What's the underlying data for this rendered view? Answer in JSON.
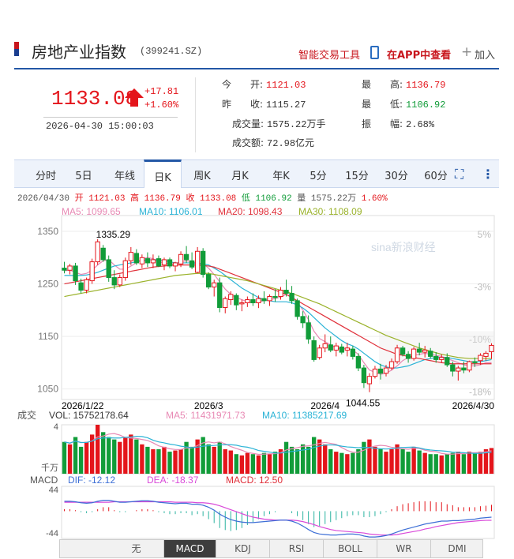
{
  "header": {
    "title": "房地产业指数",
    "code": "(399241.SZ)",
    "tool_link": "智能交易工具",
    "app_link": "在APP中查看",
    "add_label": "加入",
    "add_icon": "plus-icon",
    "phone_icon": "phone-icon"
  },
  "quote": {
    "price": "1133.08",
    "change": "+17.81",
    "change_pct": "+1.60%",
    "datetime": "2026-04-30 15:00:03",
    "open_label": "今　　开:",
    "open": "1121.03",
    "prev_label": "昨　　收:",
    "prev": "1115.27",
    "vol_label": "成交量:",
    "vol": "1575.22万手",
    "amt_label": "成交额:",
    "amt": "72.98亿元",
    "high_label": "最　　高:",
    "high": "1136.79",
    "low_label": "最　　低:",
    "low": "1106.92",
    "amp_label": "振　　幅:",
    "amp": "2.68%"
  },
  "tabs": [
    "分时",
    "5日",
    "年线",
    "日K",
    "周K",
    "月K",
    "年K",
    "5分",
    "15分",
    "30分",
    "60分"
  ],
  "active_tab": "日K",
  "chart_data": {
    "type": "candlestick",
    "info_line": {
      "date": "2026/04/30",
      "open": "开 1121.03",
      "high": "高 1136.79",
      "close": "收 1133.08",
      "low": "低 1106.92",
      "vol": "量 1575.22万",
      "pct": "1.60%"
    },
    "ma_legend": [
      {
        "name": "MA5:",
        "value": "1099.65",
        "color": "#e889b4"
      },
      {
        "name": "MA10:",
        "value": "1106.01",
        "color": "#2ab3d6"
      },
      {
        "name": "MA20:",
        "value": "1098.43",
        "color": "#e0303a"
      },
      {
        "name": "MA30:",
        "value": "1108.09",
        "color": "#9ab22a"
      }
    ],
    "yticks_left": [
      "1350",
      "1250",
      "1150",
      "1050"
    ],
    "yticks_right": [
      "5%",
      "-3%",
      "-10%",
      "-18%"
    ],
    "xticks": [
      "2026/1/22",
      "2026/3",
      "2026/4",
      "2026/4/30"
    ],
    "annotations": {
      "max": "1335.29",
      "min": "1044.55"
    },
    "watermark": "sina新浪财经",
    "ylim": [
      1030,
      1365
    ],
    "candles": [
      [
        1280,
        1292,
        1270,
        1276
      ],
      [
        1276,
        1288,
        1268,
        1284
      ],
      [
        1284,
        1290,
        1248,
        1256
      ],
      [
        1252,
        1260,
        1232,
        1238
      ],
      [
        1238,
        1262,
        1232,
        1258
      ],
      [
        1256,
        1298,
        1250,
        1292
      ],
      [
        1292,
        1335,
        1286,
        1330
      ],
      [
        1318,
        1324,
        1292,
        1296
      ],
      [
        1296,
        1304,
        1254,
        1262
      ],
      [
        1262,
        1276,
        1240,
        1248
      ],
      [
        1248,
        1268,
        1244,
        1262
      ],
      [
        1262,
        1300,
        1256,
        1294
      ],
      [
        1294,
        1320,
        1286,
        1310
      ],
      [
        1308,
        1316,
        1286,
        1290
      ],
      [
        1288,
        1306,
        1280,
        1300
      ],
      [
        1298,
        1310,
        1282,
        1290
      ],
      [
        1290,
        1306,
        1280,
        1296
      ],
      [
        1298,
        1304,
        1282,
        1284
      ],
      [
        1286,
        1300,
        1276,
        1296
      ],
      [
        1296,
        1300,
        1280,
        1284
      ],
      [
        1284,
        1292,
        1274,
        1290
      ],
      [
        1288,
        1312,
        1282,
        1306
      ],
      [
        1306,
        1322,
        1290,
        1296
      ],
      [
        1294,
        1310,
        1278,
        1282
      ],
      [
        1272,
        1320,
        1270,
        1312
      ],
      [
        1312,
        1318,
        1262,
        1268
      ],
      [
        1268,
        1272,
        1240,
        1244
      ],
      [
        1244,
        1258,
        1226,
        1252
      ],
      [
        1252,
        1262,
        1196,
        1205
      ],
      [
        1205,
        1226,
        1194,
        1222
      ],
      [
        1220,
        1236,
        1210,
        1230
      ],
      [
        1228,
        1232,
        1200,
        1210
      ],
      [
        1212,
        1220,
        1198,
        1214
      ],
      [
        1214,
        1226,
        1206,
        1220
      ],
      [
        1220,
        1232,
        1208,
        1214
      ],
      [
        1214,
        1228,
        1204,
        1222
      ],
      [
        1222,
        1236,
        1212,
        1218
      ],
      [
        1218,
        1230,
        1208,
        1226
      ],
      [
        1226,
        1240,
        1216,
        1224
      ],
      [
        1226,
        1244,
        1220,
        1238
      ],
      [
        1238,
        1258,
        1226,
        1232
      ],
      [
        1232,
        1246,
        1212,
        1218
      ],
      [
        1218,
        1222,
        1182,
        1188
      ],
      [
        1188,
        1198,
        1166,
        1176
      ],
      [
        1176,
        1190,
        1136,
        1145
      ],
      [
        1142,
        1150,
        1102,
        1106
      ],
      [
        1110,
        1134,
        1106,
        1128
      ],
      [
        1128,
        1154,
        1120,
        1136
      ],
      [
        1134,
        1150,
        1120,
        1124
      ],
      [
        1124,
        1138,
        1112,
        1132
      ],
      [
        1130,
        1136,
        1116,
        1120
      ],
      [
        1124,
        1138,
        1112,
        1128
      ],
      [
        1126,
        1132,
        1106,
        1112
      ],
      [
        1112,
        1118,
        1084,
        1090
      ],
      [
        1090,
        1096,
        1052,
        1062
      ],
      [
        1060,
        1080,
        1044,
        1074
      ],
      [
        1074,
        1094,
        1070,
        1088
      ],
      [
        1088,
        1098,
        1068,
        1080
      ],
      [
        1080,
        1096,
        1074,
        1090
      ],
      [
        1090,
        1108,
        1086,
        1102
      ],
      [
        1102,
        1134,
        1098,
        1128
      ],
      [
        1128,
        1132,
        1112,
        1116
      ],
      [
        1116,
        1122,
        1100,
        1108
      ],
      [
        1108,
        1130,
        1104,
        1126
      ],
      [
        1126,
        1138,
        1114,
        1120
      ],
      [
        1120,
        1132,
        1110,
        1124
      ],
      [
        1122,
        1128,
        1108,
        1112
      ],
      [
        1112,
        1120,
        1100,
        1106
      ],
      [
        1106,
        1116,
        1100,
        1110
      ],
      [
        1110,
        1118,
        1092,
        1096
      ],
      [
        1096,
        1102,
        1074,
        1084
      ],
      [
        1084,
        1094,
        1066,
        1090
      ],
      [
        1090,
        1102,
        1080,
        1086
      ],
      [
        1086,
        1104,
        1082,
        1102
      ],
      [
        1102,
        1110,
        1092,
        1100
      ],
      [
        1104,
        1118,
        1096,
        1114
      ],
      [
        1112,
        1122,
        1104,
        1118
      ],
      [
        1121,
        1137,
        1107,
        1133
      ]
    ],
    "ma_series": {
      "MA5": [
        1275,
        1276,
        1272,
        1268,
        1270,
        1276,
        1286,
        1294,
        1296,
        1286,
        1278,
        1278,
        1284,
        1290,
        1298,
        1300,
        1298,
        1292,
        1290,
        1288,
        1288,
        1292,
        1294,
        1292,
        1290,
        1288,
        1280,
        1268,
        1254,
        1240,
        1230,
        1224,
        1220,
        1216,
        1214,
        1216,
        1218,
        1220,
        1222,
        1225,
        1230,
        1226,
        1216,
        1200,
        1182,
        1160,
        1146,
        1140,
        1134,
        1128,
        1126,
        1128,
        1124,
        1116,
        1100,
        1086,
        1082,
        1078,
        1080,
        1086,
        1094,
        1104,
        1110,
        1114,
        1116,
        1118,
        1116,
        1114,
        1112,
        1108,
        1104,
        1100,
        1096,
        1094,
        1094,
        1096,
        1100,
        1100
      ],
      "MA10": [
        1266,
        1266,
        1266,
        1266,
        1267,
        1269,
        1272,
        1276,
        1280,
        1284,
        1286,
        1288,
        1290,
        1292,
        1294,
        1296,
        1296,
        1296,
        1294,
        1292,
        1290,
        1290,
        1290,
        1290,
        1289,
        1288,
        1286,
        1280,
        1274,
        1266,
        1258,
        1250,
        1242,
        1236,
        1230,
        1224,
        1220,
        1218,
        1216,
        1216,
        1216,
        1214,
        1210,
        1204,
        1196,
        1186,
        1176,
        1166,
        1158,
        1150,
        1142,
        1136,
        1132,
        1126,
        1118,
        1110,
        1102,
        1096,
        1092,
        1090,
        1090,
        1092,
        1094,
        1098,
        1102,
        1106,
        1108,
        1110,
        1110,
        1110,
        1108,
        1106,
        1104,
        1102,
        1102,
        1102,
        1104,
        1106
      ],
      "MA20": [
        1250,
        1252,
        1254,
        1256,
        1258,
        1260,
        1262,
        1264,
        1266,
        1268,
        1270,
        1272,
        1274,
        1276,
        1278,
        1280,
        1282,
        1283,
        1284,
        1285,
        1286,
        1286,
        1286,
        1286,
        1286,
        1285,
        1284,
        1282,
        1278,
        1274,
        1270,
        1266,
        1262,
        1258,
        1254,
        1250,
        1246,
        1242,
        1238,
        1234,
        1230,
        1224,
        1218,
        1212,
        1206,
        1200,
        1194,
        1188,
        1182,
        1176,
        1170,
        1164,
        1158,
        1152,
        1146,
        1140,
        1134,
        1128,
        1124,
        1120,
        1116,
        1114,
        1112,
        1110,
        1108,
        1106,
        1104,
        1102,
        1100,
        1099,
        1098,
        1098,
        1098,
        1098,
        1098,
        1098,
        1098,
        1098
      ],
      "MA30": [
        1226,
        1228,
        1230,
        1232,
        1234,
        1236,
        1238,
        1240,
        1242,
        1244,
        1246,
        1248,
        1250,
        1252,
        1254,
        1256,
        1258,
        1260,
        1262,
        1264,
        1266,
        1267,
        1268,
        1269,
        1270,
        1270,
        1270,
        1268,
        1266,
        1264,
        1262,
        1260,
        1258,
        1256,
        1253,
        1250,
        1247,
        1244,
        1241,
        1238,
        1235,
        1232,
        1228,
        1224,
        1220,
        1216,
        1212,
        1207,
        1202,
        1197,
        1192,
        1187,
        1182,
        1177,
        1172,
        1167,
        1162,
        1157,
        1152,
        1148,
        1144,
        1140,
        1136,
        1132,
        1128,
        1125,
        1122,
        1119,
        1116,
        1114,
        1112,
        1110,
        1109,
        1108,
        1108,
        1108,
        1108,
        1108
      ]
    },
    "volume": {
      "label": "成交",
      "vol_legend": [
        {
          "name": "VOL:",
          "value": "15752178.64",
          "color": "#333"
        },
        {
          "name": "MA5:",
          "value": "11431971.73",
          "color": "#e889b4"
        },
        {
          "name": "MA10:",
          "value": "11385217.69",
          "color": "#2ab3d6"
        }
      ],
      "ytick": "4",
      "unit": "千万",
      "values": [
        2.6,
        2.4,
        3.0,
        2.2,
        2.6,
        3.2,
        4.0,
        3.4,
        3.0,
        2.8,
        2.6,
        3.0,
        3.2,
        2.8,
        2.4,
        2.2,
        2.0,
        2.0,
        2.2,
        1.8,
        1.9,
        2.0,
        2.6,
        2.2,
        2.8,
        3.0,
        2.4,
        2.2,
        2.6,
        2.0,
        1.9,
        1.6,
        1.5,
        1.7,
        1.6,
        1.5,
        1.7,
        1.6,
        1.8,
        2.0,
        2.6,
        2.2,
        2.0,
        2.4,
        2.2,
        3.0,
        2.8,
        2.4,
        2.0,
        1.8,
        1.7,
        1.6,
        1.7,
        2.0,
        2.6,
        2.8,
        2.2,
        2.0,
        1.8,
        2.0,
        2.4,
        2.0,
        1.8,
        2.2,
        1.9,
        1.7,
        1.6,
        1.6,
        1.5,
        1.6,
        1.7,
        1.8,
        1.6,
        1.8,
        1.7,
        1.8,
        2.0,
        2.1
      ]
    },
    "macd": {
      "label": "MACD",
      "legend": [
        {
          "name": "DIF:",
          "value": "-12.12",
          "color": "#3d6fd6"
        },
        {
          "name": "DEA:",
          "value": "-18.37",
          "color": "#d94ad9"
        },
        {
          "name": "MACD:",
          "value": "12.50",
          "color": "#e0303a"
        }
      ],
      "yticks": [
        "44",
        "-44"
      ],
      "ylim": [
        -55,
        50
      ],
      "dif": [
        20,
        20,
        19,
        17,
        16,
        17,
        20,
        22,
        22,
        20,
        18,
        18,
        19,
        20,
        21,
        21,
        20,
        18,
        17,
        16,
        15,
        16,
        16,
        14,
        14,
        12,
        8,
        2,
        -6,
        -12,
        -17,
        -20,
        -22,
        -23,
        -23,
        -22,
        -21,
        -20,
        -19,
        -18,
        -18,
        -20,
        -24,
        -30,
        -37,
        -43,
        -46,
        -47,
        -48,
        -48,
        -47,
        -46,
        -46,
        -47,
        -50,
        -52,
        -52,
        -51,
        -49,
        -46,
        -42,
        -38,
        -35,
        -32,
        -29,
        -26,
        -24,
        -22,
        -20,
        -20,
        -19,
        -19,
        -18,
        -17,
        -16,
        -14,
        -13,
        -12
      ],
      "dea": [
        18,
        18,
        18,
        18,
        18,
        18,
        18,
        18,
        18,
        19,
        19,
        19,
        19,
        19,
        19,
        19,
        19,
        19,
        19,
        19,
        18,
        18,
        18,
        18,
        17,
        17,
        16,
        14,
        11,
        7,
        3,
        -1,
        -5,
        -9,
        -12,
        -14,
        -16,
        -17,
        -18,
        -18,
        -18,
        -18,
        -19,
        -21,
        -24,
        -27,
        -31,
        -34,
        -37,
        -39,
        -40,
        -41,
        -42,
        -43,
        -44,
        -46,
        -47,
        -48,
        -48,
        -48,
        -47,
        -45,
        -43,
        -41,
        -39,
        -36,
        -34,
        -31,
        -29,
        -27,
        -25,
        -23,
        -22,
        -21,
        -20,
        -19,
        -18.5,
        -18.4
      ]
    }
  },
  "bottom_bar": {
    "up_icon": "▲",
    "down_icon": "▼",
    "buttons": [
      "无",
      "MACD",
      "KDJ",
      "RSI",
      "BOLL",
      "WR",
      "DMI"
    ],
    "active": "MACD"
  }
}
